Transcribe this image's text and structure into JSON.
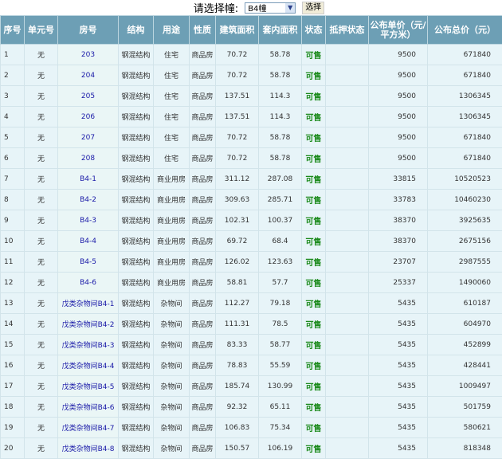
{
  "selector": {
    "label": "请选择幢:",
    "value": "B4幢",
    "button": "选择"
  },
  "headers": [
    "序号",
    "单元号",
    "房号",
    "结构",
    "用途",
    "性质",
    "建筑面积",
    "套内面积",
    "状态",
    "抵押状态",
    "公布单价（元/平方米）",
    "公布总价（元）"
  ],
  "rows": [
    [
      "1",
      "无",
      "203",
      "钢混结构",
      "住宅",
      "商品房",
      "70.72",
      "58.78",
      "可售",
      "",
      "9500",
      "671840"
    ],
    [
      "2",
      "无",
      "204",
      "钢混结构",
      "住宅",
      "商品房",
      "70.72",
      "58.78",
      "可售",
      "",
      "9500",
      "671840"
    ],
    [
      "3",
      "无",
      "205",
      "钢混结构",
      "住宅",
      "商品房",
      "137.51",
      "114.3",
      "可售",
      "",
      "9500",
      "1306345"
    ],
    [
      "4",
      "无",
      "206",
      "钢混结构",
      "住宅",
      "商品房",
      "137.51",
      "114.3",
      "可售",
      "",
      "9500",
      "1306345"
    ],
    [
      "5",
      "无",
      "207",
      "钢混结构",
      "住宅",
      "商品房",
      "70.72",
      "58.78",
      "可售",
      "",
      "9500",
      "671840"
    ],
    [
      "6",
      "无",
      "208",
      "钢混结构",
      "住宅",
      "商品房",
      "70.72",
      "58.78",
      "可售",
      "",
      "9500",
      "671840"
    ],
    [
      "7",
      "无",
      "B4-1",
      "钢混结构",
      "商业用房",
      "商品房",
      "311.12",
      "287.08",
      "可售",
      "",
      "33815",
      "10520523"
    ],
    [
      "8",
      "无",
      "B4-2",
      "钢混结构",
      "商业用房",
      "商品房",
      "309.63",
      "285.71",
      "可售",
      "",
      "33783",
      "10460230"
    ],
    [
      "9",
      "无",
      "B4-3",
      "钢混结构",
      "商业用房",
      "商品房",
      "102.31",
      "100.37",
      "可售",
      "",
      "38370",
      "3925635"
    ],
    [
      "10",
      "无",
      "B4-4",
      "钢混结构",
      "商业用房",
      "商品房",
      "69.72",
      "68.4",
      "可售",
      "",
      "38370",
      "2675156"
    ],
    [
      "11",
      "无",
      "B4-5",
      "钢混结构",
      "商业用房",
      "商品房",
      "126.02",
      "123.63",
      "可售",
      "",
      "23707",
      "2987555"
    ],
    [
      "12",
      "无",
      "B4-6",
      "钢混结构",
      "商业用房",
      "商品房",
      "58.81",
      "57.7",
      "可售",
      "",
      "25337",
      "1490060"
    ],
    [
      "13",
      "无",
      "戊类杂物间B4-1",
      "钢混结构",
      "杂物间",
      "商品房",
      "112.27",
      "79.18",
      "可售",
      "",
      "5435",
      "610187"
    ],
    [
      "14",
      "无",
      "戊类杂物间B4-2",
      "钢混结构",
      "杂物间",
      "商品房",
      "111.31",
      "78.5",
      "可售",
      "",
      "5435",
      "604970"
    ],
    [
      "15",
      "无",
      "戊类杂物间B4-3",
      "钢混结构",
      "杂物间",
      "商品房",
      "83.33",
      "58.77",
      "可售",
      "",
      "5435",
      "452899"
    ],
    [
      "16",
      "无",
      "戊类杂物间B4-4",
      "钢混结构",
      "杂物间",
      "商品房",
      "78.83",
      "55.59",
      "可售",
      "",
      "5435",
      "428441"
    ],
    [
      "17",
      "无",
      "戊类杂物间B4-5",
      "钢混结构",
      "杂物间",
      "商品房",
      "185.74",
      "130.99",
      "可售",
      "",
      "5435",
      "1009497"
    ],
    [
      "18",
      "无",
      "戊类杂物间B4-6",
      "钢混结构",
      "杂物间",
      "商品房",
      "92.32",
      "65.11",
      "可售",
      "",
      "5435",
      "501759"
    ],
    [
      "19",
      "无",
      "戊类杂物间B4-7",
      "钢混结构",
      "杂物间",
      "商品房",
      "106.83",
      "75.34",
      "可售",
      "",
      "5435",
      "580621"
    ],
    [
      "20",
      "无",
      "戊类杂物间B4-8",
      "钢混结构",
      "杂物间",
      "商品房",
      "150.57",
      "106.19",
      "可售",
      "",
      "5435",
      "818348"
    ]
  ]
}
